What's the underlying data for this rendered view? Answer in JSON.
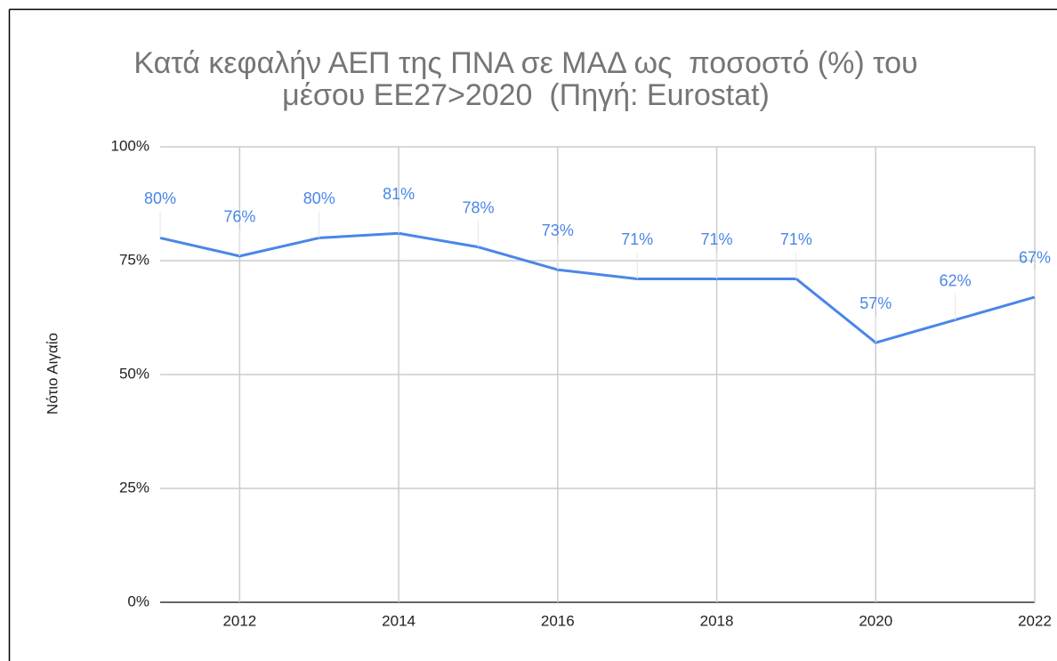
{
  "chart_data": {
    "type": "line",
    "title": [
      "Κατά κεφαλήν ΑΕΠ της ΠΝΑ σε ΜΑΔ ως  ποσοστό (%) του",
      "μέσου ΕΕ27>2020  (Πηγή: Eurostat)"
    ],
    "y_label": "Νότιο Αιγαίο",
    "x": [
      2011,
      2012,
      2013,
      2014,
      2015,
      2016,
      2017,
      2018,
      2019,
      2020,
      2021,
      2022
    ],
    "series": [
      {
        "name": "Νότιο Αιγαίο",
        "color": "#4a86e8",
        "values": [
          80,
          76,
          80,
          81,
          78,
          73,
          71,
          71,
          71,
          57,
          62,
          67
        ],
        "value_labels": [
          "80%",
          "76%",
          "80%",
          "81%",
          "78%",
          "73%",
          "71%",
          "71%",
          "71%",
          "57%",
          "62%",
          "67%"
        ]
      }
    ],
    "xlim": [
      2011,
      2022
    ],
    "xticks": [
      2012,
      2014,
      2016,
      2018,
      2020,
      2022
    ],
    "ylim": [
      0,
      100
    ],
    "yticks": [
      {
        "value": 0,
        "label": "0%"
      },
      {
        "value": 25,
        "label": "25%"
      },
      {
        "value": 50,
        "label": "50%"
      },
      {
        "value": 75,
        "label": "75%"
      },
      {
        "value": 100,
        "label": "100%"
      }
    ],
    "grid": true
  }
}
